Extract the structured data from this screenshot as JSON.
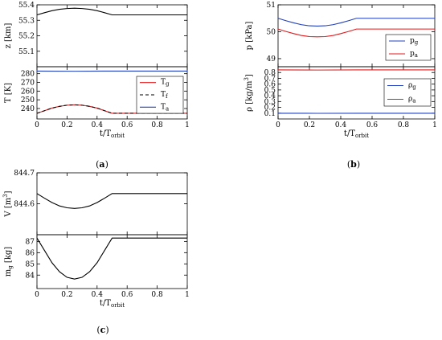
{
  "chart_data": [
    {
      "id": "a_top",
      "type": "line",
      "ylabel": {
        "main": "z [km]",
        "sub": ""
      },
      "xlim": [
        0,
        1
      ],
      "ylim": [
        55.0,
        55.4
      ],
      "yticks": [
        "55.1",
        "55.2",
        "55.3",
        "55.4"
      ],
      "ytick_values": [
        55.1,
        55.2,
        55.3,
        55.4
      ],
      "xticks": [],
      "xlabel": null,
      "legend": null,
      "series": [
        {
          "color": "#000000",
          "dash": "",
          "x": [
            0,
            0.05,
            0.1,
            0.15,
            0.2,
            0.25,
            0.3,
            0.35,
            0.4,
            0.45,
            0.5,
            1.0
          ],
          "y": [
            55.335,
            55.349,
            55.362,
            55.371,
            55.376,
            55.378,
            55.376,
            55.371,
            55.362,
            55.349,
            55.335,
            55.335
          ]
        }
      ]
    },
    {
      "id": "a_bottom",
      "type": "line",
      "ylabel": {
        "main": "T [K]",
        "sub": ""
      },
      "xlim": [
        0,
        1
      ],
      "ylim": [
        228,
        288
      ],
      "yticks": [
        "240",
        "250",
        "260",
        "270",
        "280"
      ],
      "ytick_values": [
        240,
        250,
        260,
        270,
        280
      ],
      "xticks": [
        "0",
        "0.2",
        "0.4",
        "0.6",
        "0.8",
        "1"
      ],
      "xtick_values": [
        0,
        0.2,
        0.4,
        0.6,
        0.8,
        1
      ],
      "xlabel": {
        "main": "t/T",
        "sub": "orbit"
      },
      "legend": {
        "position": "right",
        "entries": [
          {
            "label": "T",
            "sub": "g",
            "color": "#e41a1c",
            "dash": ""
          },
          {
            "label": "T",
            "sub": "f",
            "color": "#000000",
            "dash": "4,3"
          },
          {
            "label": "T",
            "sub": "a",
            "color": "#1f3fbf",
            "dash": ""
          }
        ]
      },
      "series": [
        {
          "color": "#1f3fbf",
          "dash": "",
          "x": [
            0,
            0.25,
            0.5,
            1.0
          ],
          "y": [
            283.0,
            282.8,
            283.0,
            283.0
          ]
        },
        {
          "color": "#e41a1c",
          "dash": "",
          "x": [
            0,
            0.05,
            0.1,
            0.15,
            0.2,
            0.25,
            0.3,
            0.35,
            0.4,
            0.45,
            0.5,
            1.0
          ],
          "y": [
            234.5,
            237.5,
            240.5,
            242.5,
            243.8,
            244.2,
            243.8,
            242.5,
            240.5,
            237.5,
            234.5,
            234.5
          ]
        },
        {
          "color": "#000000",
          "dash": "4,3",
          "x": [
            0,
            0.05,
            0.1,
            0.15,
            0.2,
            0.25,
            0.3,
            0.35,
            0.4,
            0.45,
            0.5,
            1.0
          ],
          "y": [
            234.5,
            237.5,
            240.5,
            242.5,
            243.8,
            244.2,
            243.8,
            242.5,
            240.5,
            237.5,
            234.5,
            234.5
          ]
        }
      ]
    },
    {
      "id": "b_top",
      "type": "line",
      "ylabel": {
        "main": "p [kPa]",
        "sub": ""
      },
      "xlim": [
        0,
        1
      ],
      "ylim": [
        48.7,
        51.0
      ],
      "yticks": [
        "49",
        "50",
        "51"
      ],
      "ytick_values": [
        49,
        50,
        51
      ],
      "xticks": [],
      "xlabel": null,
      "legend": {
        "position": "right",
        "entries": [
          {
            "label": "p",
            "sub": "g",
            "color": "#1f3fbf",
            "dash": ""
          },
          {
            "label": "p",
            "sub": "a",
            "color": "#e41a1c",
            "dash": ""
          }
        ]
      },
      "series": [
        {
          "color": "#1f3fbf",
          "dash": "",
          "x": [
            0,
            0.05,
            0.1,
            0.15,
            0.2,
            0.25,
            0.3,
            0.35,
            0.4,
            0.45,
            0.5,
            1.0
          ],
          "y": [
            50.5,
            50.41,
            50.33,
            50.26,
            50.22,
            50.21,
            50.22,
            50.26,
            50.33,
            50.41,
            50.5,
            50.5
          ]
        },
        {
          "color": "#e41a1c",
          "dash": "",
          "x": [
            0,
            0.05,
            0.1,
            0.15,
            0.2,
            0.25,
            0.3,
            0.35,
            0.4,
            0.45,
            0.5,
            1.0
          ],
          "y": [
            50.1,
            50.01,
            49.93,
            49.86,
            49.82,
            49.81,
            49.82,
            49.86,
            49.93,
            50.01,
            50.1,
            50.1
          ]
        }
      ]
    },
    {
      "id": "b_bottom",
      "type": "line",
      "ylabel": {
        "main": "ρ [kg/m",
        "sup": "3",
        "tail": "]"
      },
      "xlim": [
        0,
        1
      ],
      "ylim": [
        0.0,
        0.9
      ],
      "yticks": [
        "0.1",
        "0.2",
        "0.3",
        "0.4",
        "0.5",
        "0.6",
        "0.7",
        "0.8"
      ],
      "ytick_values": [
        0.1,
        0.2,
        0.3,
        0.4,
        0.5,
        0.6,
        0.7,
        0.8
      ],
      "xticks": [
        "0",
        "0.2",
        "0.4",
        "0.6",
        "0.8",
        "1"
      ],
      "xtick_values": [
        0,
        0.2,
        0.4,
        0.6,
        0.8,
        1
      ],
      "xlabel": {
        "main": "t/T",
        "sub": "orbit"
      },
      "legend": {
        "position": "right",
        "entries": [
          {
            "label": "ρ",
            "sub": "g",
            "color": "#1f3fbf",
            "dash": ""
          },
          {
            "label": "ρ",
            "sub": "a",
            "color": "#e41a1c",
            "dash": ""
          }
        ]
      },
      "series": [
        {
          "color": "#e41a1c",
          "dash": "",
          "x": [
            0,
            0.25,
            0.5,
            1.0
          ],
          "y": [
            0.845,
            0.843,
            0.845,
            0.845
          ]
        },
        {
          "color": "#1f3fbf",
          "dash": "",
          "x": [
            0,
            0.25,
            0.5,
            1.0
          ],
          "y": [
            0.098,
            0.097,
            0.098,
            0.098
          ]
        }
      ]
    },
    {
      "id": "c_top",
      "type": "line",
      "ylabel": {
        "main": "V [m",
        "sup": "3",
        "tail": "]"
      },
      "xlim": [
        0,
        1
      ],
      "ylim": [
        844.5,
        844.7
      ],
      "yticks": [
        "844.6",
        "844.7"
      ],
      "ytick_values": [
        844.6,
        844.7
      ],
      "xticks": [],
      "xlabel": null,
      "legend": null,
      "series": [
        {
          "color": "#000000",
          "dash": "",
          "x": [
            0,
            0.05,
            0.1,
            0.15,
            0.2,
            0.25,
            0.3,
            0.35,
            0.4,
            0.45,
            0.5,
            1.0
          ],
          "y": [
            844.633,
            844.618,
            844.604,
            844.593,
            844.587,
            844.585,
            844.587,
            844.593,
            844.604,
            844.618,
            844.633,
            844.633
          ]
        }
      ]
    },
    {
      "id": "c_bottom",
      "type": "line",
      "ylabel": {
        "main": "m",
        "sub": "g",
        "tail": " [kg]"
      },
      "xlim": [
        0,
        1
      ],
      "ylim": [
        82.8,
        87.6
      ],
      "yticks": [
        "84",
        "85",
        "86",
        "87"
      ],
      "ytick_values": [
        84,
        85,
        86,
        87
      ],
      "xticks": [
        "0",
        "0.2",
        "0.4",
        "0.6",
        "0.8",
        "1"
      ],
      "xtick_values": [
        0,
        0.2,
        0.4,
        0.6,
        0.8,
        1
      ],
      "xlabel": {
        "main": "t/T",
        "sub": "orbit"
      },
      "legend": null,
      "series": [
        {
          "color": "#000000",
          "dash": "",
          "x": [
            0,
            0.05,
            0.1,
            0.15,
            0.2,
            0.25,
            0.3,
            0.35,
            0.4,
            0.45,
            0.5,
            1.0
          ],
          "y": [
            87.3,
            86.2,
            85.1,
            84.3,
            83.8,
            83.65,
            83.8,
            84.3,
            85.1,
            86.2,
            87.3,
            87.3
          ]
        }
      ]
    }
  ],
  "captions": {
    "a": "a",
    "b": "b",
    "c": "c"
  }
}
